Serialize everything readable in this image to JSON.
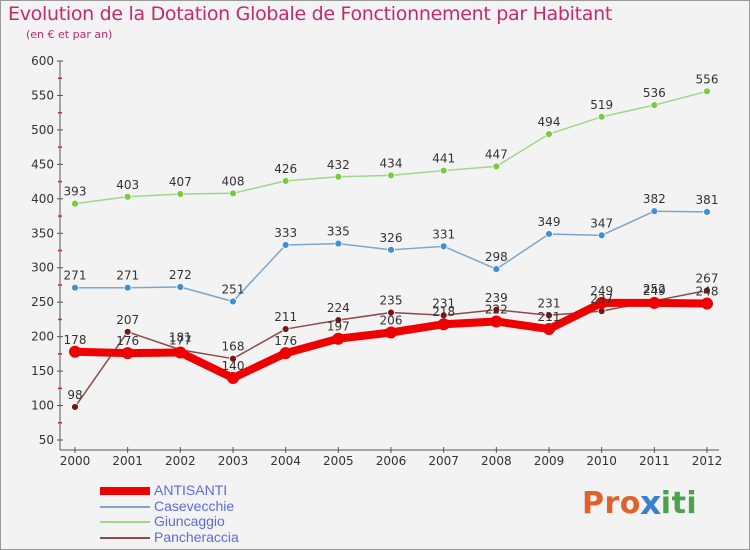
{
  "title": "Evolution de la Dotation Globale de Fonctionnement par Habitant",
  "subtitle": "(en € et par an)",
  "logo": {
    "text": "Proxiti",
    "letters": [
      "P",
      "r",
      "o",
      "x",
      "i",
      "t",
      "i"
    ],
    "colors": [
      "#e0622a",
      "#e0622a",
      "#e0622a",
      "#3a7fd0",
      "#4aa34a",
      "#4aa34a",
      "#4aa34a"
    ]
  },
  "chart_data": {
    "type": "line",
    "x": [
      "2000",
      "2001",
      "2002",
      "2003",
      "2004",
      "2005",
      "2006",
      "2007",
      "2008",
      "2009",
      "2010",
      "2011",
      "2012"
    ],
    "ylim": [
      50,
      600
    ],
    "yticks": [
      50,
      100,
      150,
      200,
      250,
      300,
      350,
      400,
      450,
      500,
      550,
      600
    ],
    "grid": false,
    "legend_position": "bottom-left",
    "series": [
      {
        "name": "ANTISANTI",
        "color": "#ee0000",
        "width": 8,
        "marker": "#ee0000",
        "values": [
          178,
          176,
          177,
          140,
          176,
          197,
          206,
          218,
          222,
          211,
          249,
          249,
          248
        ],
        "labels": [
          "178",
          "176",
          "177",
          "140",
          "176",
          "197",
          "206",
          "218",
          "222",
          "211",
          "249",
          "249",
          "248"
        ]
      },
      {
        "name": "Casevecchie",
        "color": "#7ba6c9",
        "width": 1.5,
        "marker": "#3f8fd6",
        "values": [
          271,
          271,
          272,
          251,
          333,
          335,
          326,
          331,
          298,
          349,
          347,
          382,
          381
        ],
        "labels": [
          "271",
          "271",
          "272",
          "251",
          "333",
          "335",
          "326",
          "331",
          "298",
          "349",
          "347",
          "382",
          "381"
        ]
      },
      {
        "name": "Giuncaggio",
        "color": "#9ed78a",
        "width": 1.5,
        "marker": "#77cc44",
        "values": [
          393,
          403,
          407,
          408,
          426,
          432,
          434,
          441,
          447,
          494,
          519,
          536,
          556
        ],
        "labels": [
          "393",
          "403",
          "407",
          "408",
          "426",
          "432",
          "434",
          "441",
          "447",
          "494",
          "519",
          "536",
          "556"
        ]
      },
      {
        "name": "Pancheraccia",
        "color": "#8a4b4b",
        "width": 1.5,
        "marker": "#7a1515",
        "values": [
          98,
          207,
          181,
          168,
          211,
          224,
          235,
          231,
          239,
          231,
          237,
          252,
          267
        ],
        "labels": [
          "98",
          "207",
          "181",
          "168",
          "211",
          "224",
          "235",
          "231",
          "239",
          "231",
          "237",
          "252",
          "267"
        ]
      }
    ]
  }
}
